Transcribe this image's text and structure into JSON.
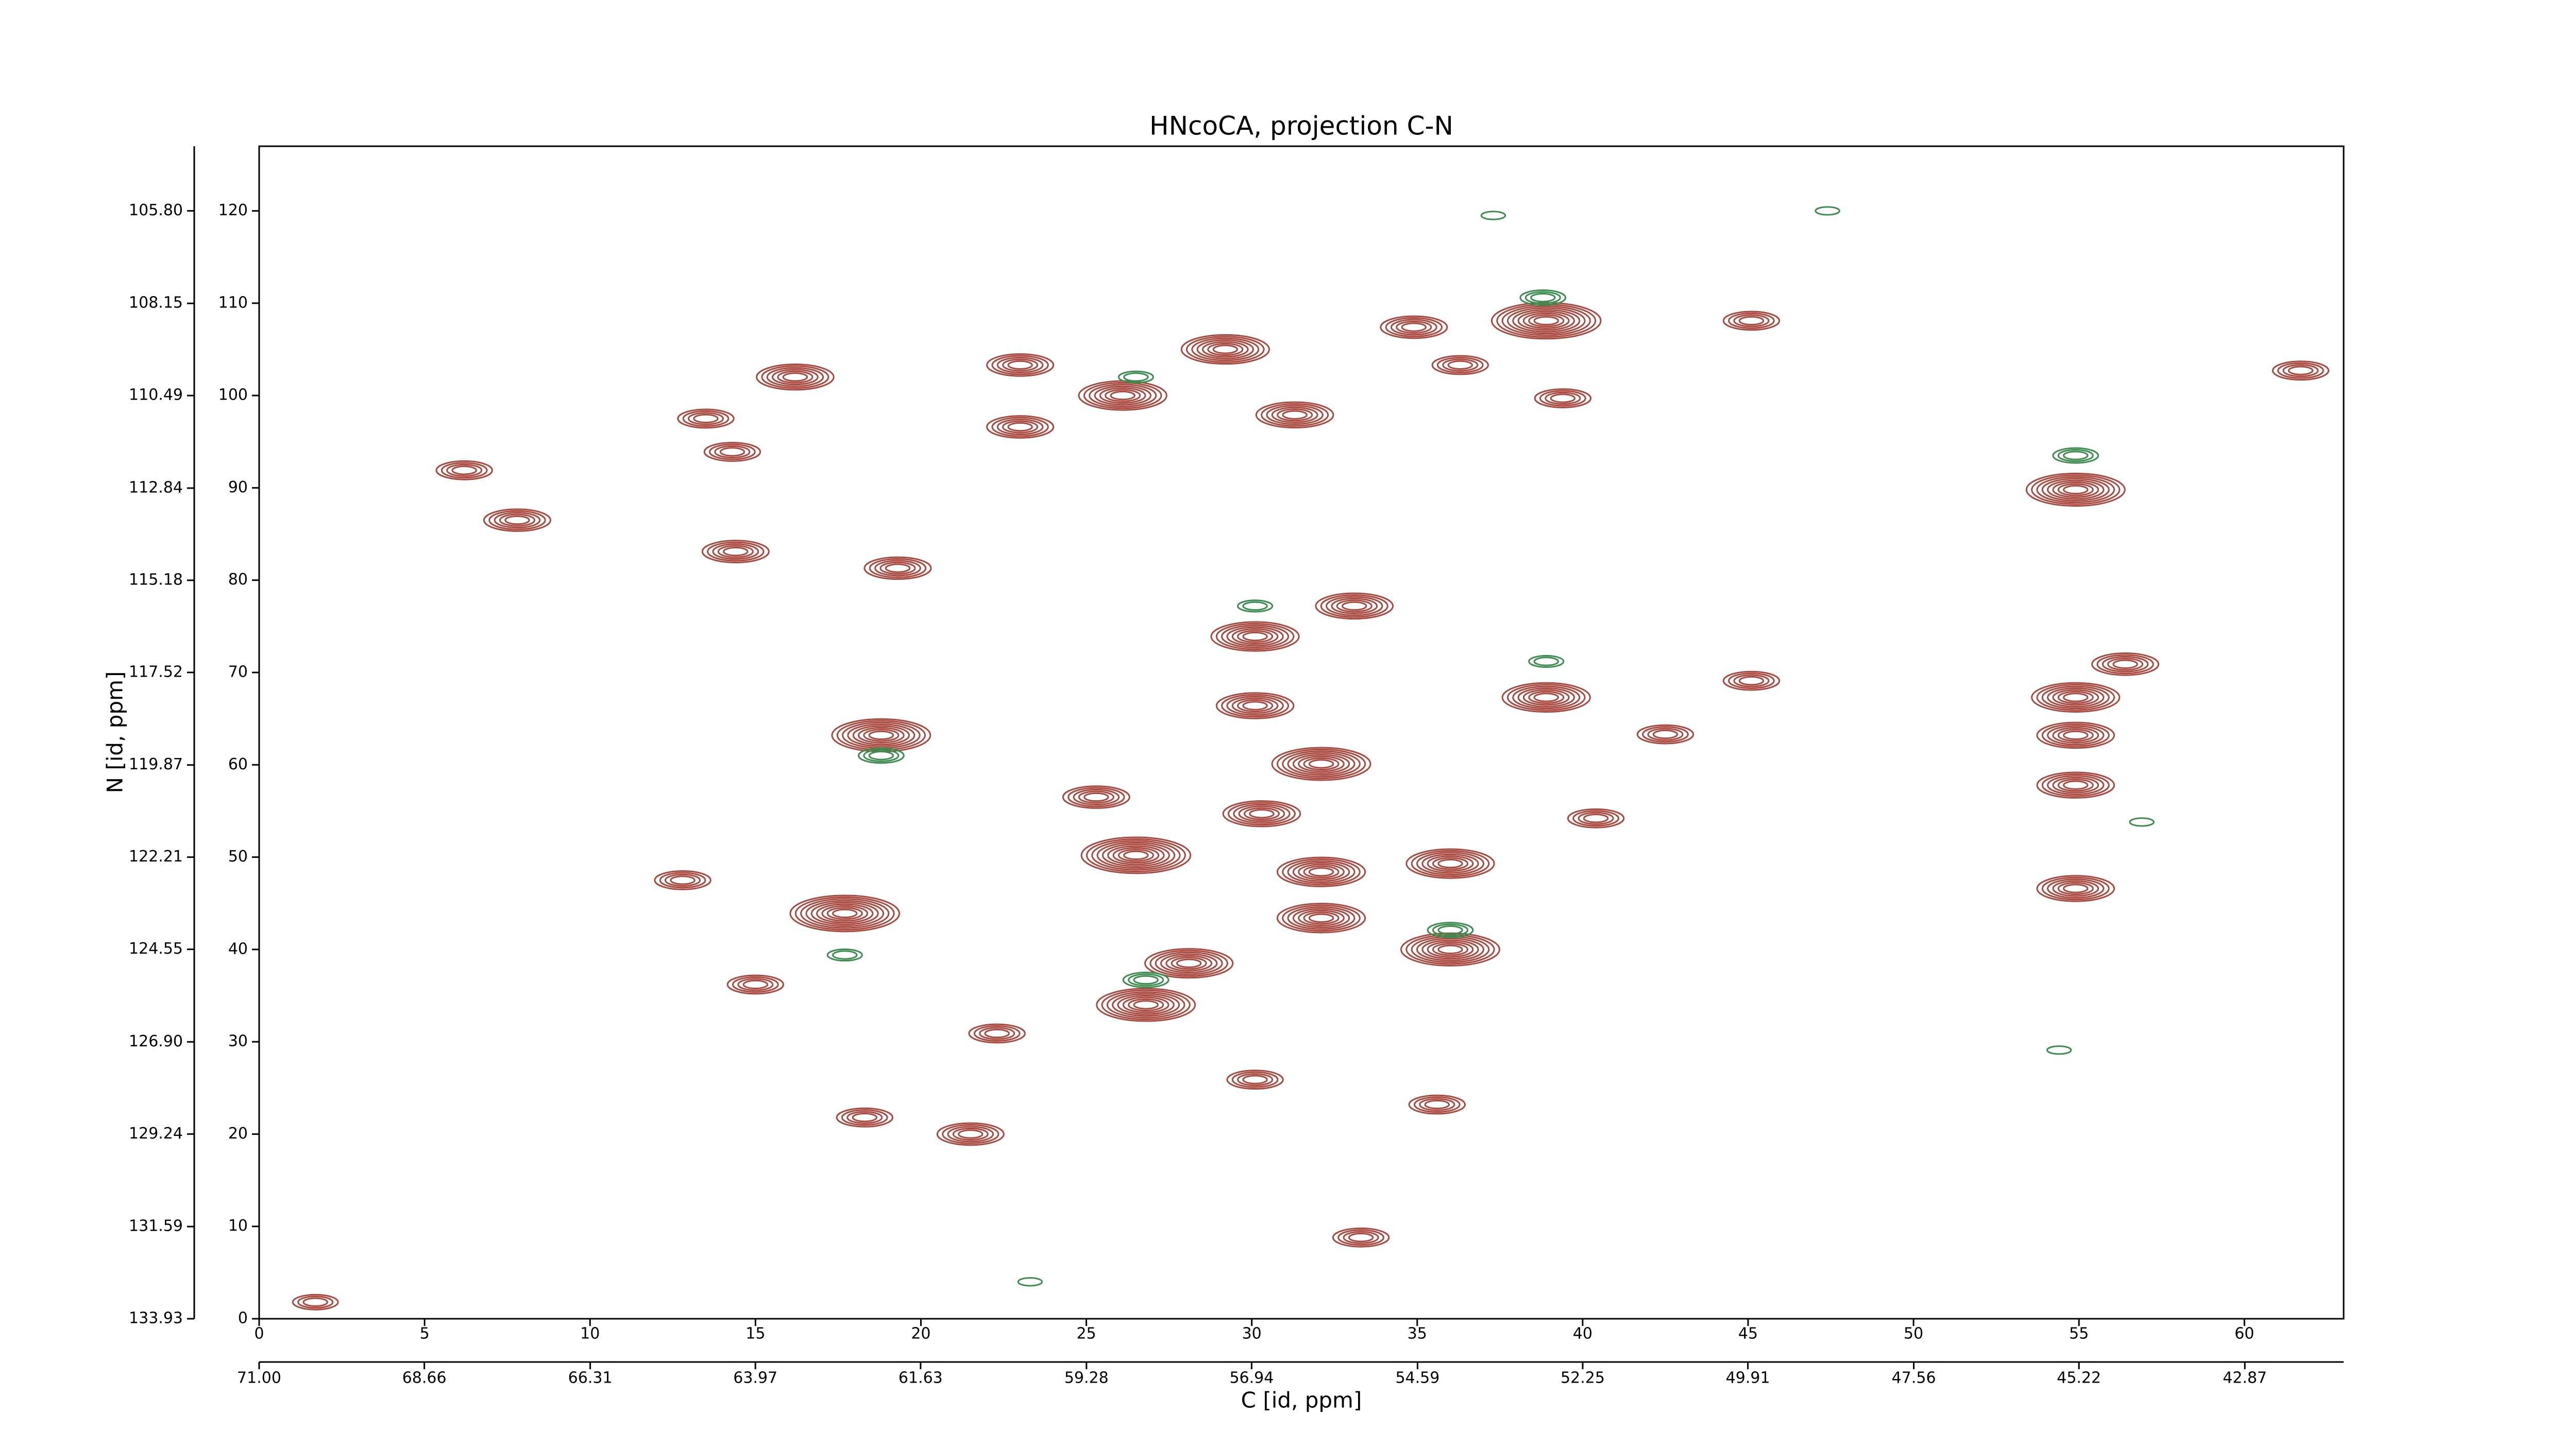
{
  "chart_data": {
    "type": "contour",
    "title": "HNcoCA, projection C-N",
    "xlabel": "C [id, ppm]",
    "ylabel": "N [id, ppm]",
    "xlim": [
      0,
      63
    ],
    "xticks": [
      0,
      5,
      10,
      15,
      20,
      25,
      30,
      35,
      40,
      45,
      50,
      55,
      60
    ],
    "x2lim": [
      71,
      41.47
    ],
    "x2ticks": [
      {
        "value": 71,
        "label": "71.00"
      },
      68.66,
      66.31,
      63.97,
      61.63,
      59.28,
      56.94,
      54.59,
      52.25,
      49.91,
      47.56,
      45.22,
      42.87
    ],
    "ylim": [
      0,
      127
    ],
    "yticks": [
      0,
      10,
      20,
      30,
      40,
      50,
      60,
      70,
      80,
      90,
      100,
      110,
      120
    ],
    "y2lim": [
      133.93,
      104.16
    ],
    "y2ticks": [
      133.93,
      131.59,
      129.24,
      {
        "value": 126.9,
        "label": "126.90"
      },
      124.55,
      122.21,
      119.87,
      117.52,
      115.18,
      112.84,
      110.49,
      108.15,
      {
        "value": 105.8,
        "label": "105.80"
      }
    ],
    "series": [
      {
        "color": "#a8483e",
        "x": [
          17.7,
          18.8,
          26.5,
          26.8,
          28.1,
          30.1,
          29.2,
          26.1,
          38.9,
          38.9,
          32.1,
          36,
          36,
          32.1,
          32.1,
          30.3,
          30.1,
          33.1,
          34.9,
          31.3,
          54.9,
          54.9,
          54.9,
          54.9,
          54.9,
          56.4,
          16.2,
          19.3,
          14.4,
          7.8,
          13.5,
          23.0,
          23.0,
          21.5,
          18.3,
          45.1,
          42.5,
          40.4,
          30.1,
          35.6,
          33.3,
          45.1,
          6.2,
          14.3,
          1.7,
          61.7,
          39.4,
          25.3,
          22.3,
          15,
          36.3,
          12.8
        ],
        "y": [
          43.9,
          63.2,
          50.2,
          34,
          38.5,
          73.9,
          105,
          100,
          108.1,
          67.3,
          60.1,
          40,
          49.3,
          43.4,
          48.4,
          54.7,
          66.4,
          77.2,
          107.4,
          97.9,
          89.8,
          67.3,
          63.2,
          57.8,
          46.6,
          70.9,
          102,
          81.3,
          83.1,
          86.5,
          97.5,
          103.3,
          96.6,
          20,
          21.8,
          108.1,
          63.3,
          54.2,
          25.9,
          23.2,
          8.8,
          69.1,
          91.9,
          93.9,
          1.8,
          102.7,
          99.7,
          56.5,
          30.9,
          36.2,
          103.3,
          47.5
        ],
        "levels": [
          9,
          8,
          9,
          8,
          7,
          7,
          7,
          7,
          9,
          7,
          8,
          8,
          7,
          7,
          7,
          6,
          6,
          6,
          5,
          6,
          8,
          7,
          6,
          6,
          6,
          5,
          6,
          5,
          5,
          5,
          4,
          5,
          5,
          5,
          4,
          4,
          4,
          4,
          4,
          4,
          4,
          4,
          4,
          4,
          3,
          4,
          4,
          5,
          4,
          4,
          4,
          4
        ]
      },
      {
        "color": "#3c8c50",
        "x": [
          38.8,
          26.5,
          18.8,
          54.9,
          26.8,
          36,
          17.7,
          30.1,
          37.3,
          47.4,
          54.4,
          23.3,
          38.9,
          56.9
        ],
        "y": [
          110.6,
          102,
          61,
          93.5,
          36.7,
          42.1,
          39.4,
          77.2,
          119.5,
          120,
          29.1,
          4,
          71.2,
          53.8
        ],
        "levels": [
          3,
          2,
          3,
          3,
          3,
          3,
          2,
          2,
          1,
          1,
          1,
          1,
          2,
          1
        ]
      }
    ]
  }
}
